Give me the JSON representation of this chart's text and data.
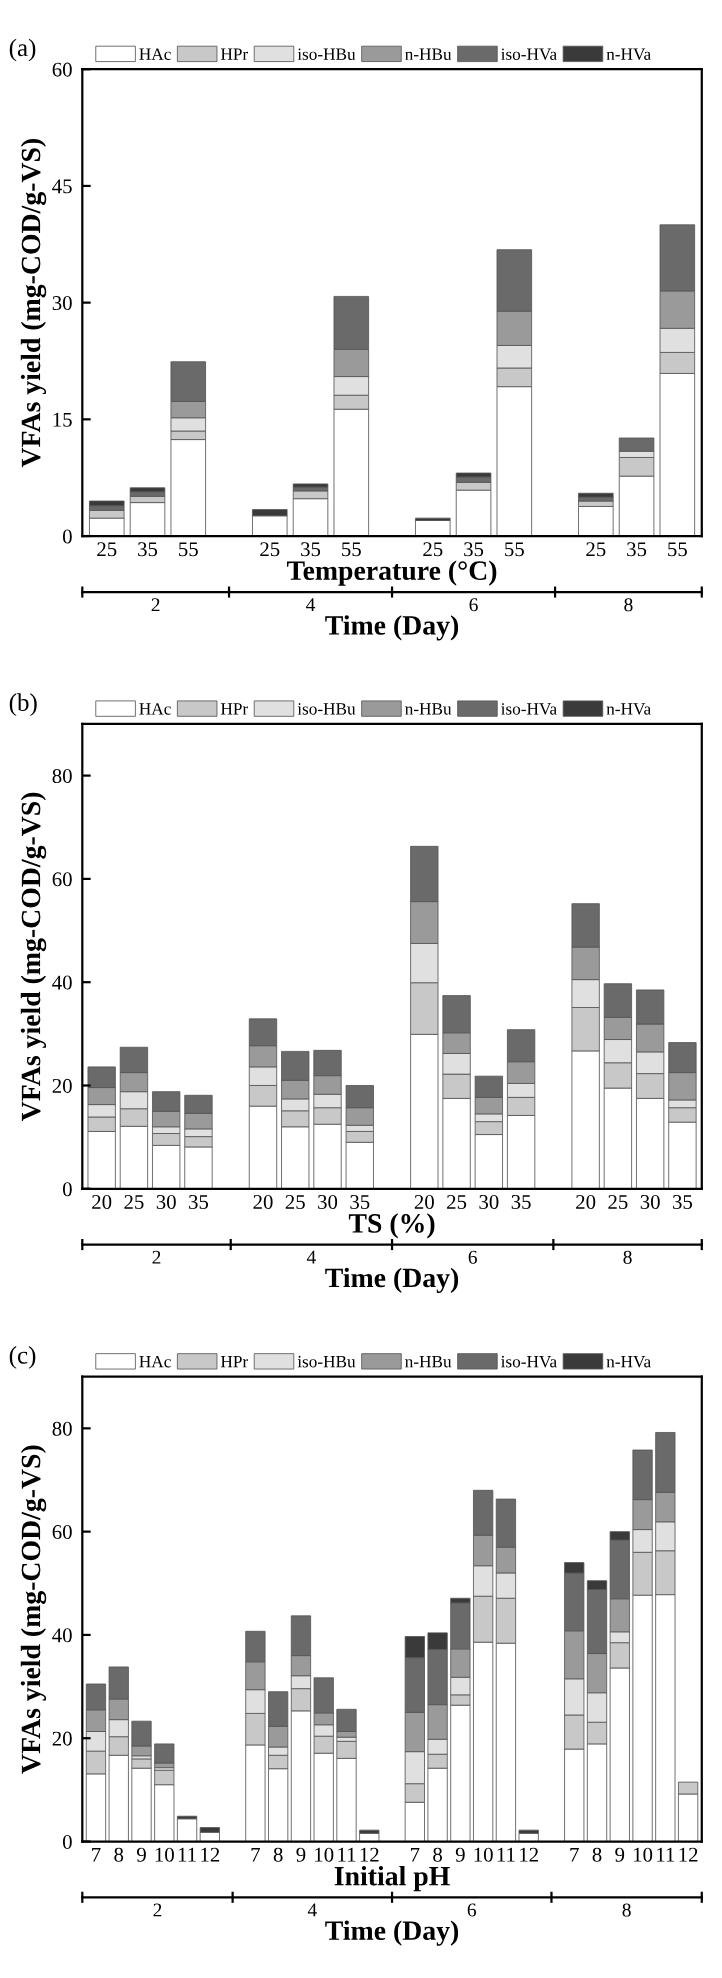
{
  "chart_data": [
    {
      "type": "bar",
      "stacked": true,
      "title": "(a)",
      "xlabel": "Temperature (°C)",
      "ylabel": "VFAs yield (mg-COD/g-VS)",
      "legend": "top",
      "ylim": [
        0,
        60
      ],
      "yticks": [
        0,
        15,
        30,
        45,
        60
      ],
      "categories": [
        "25",
        "35",
        "55",
        null,
        "25",
        "35",
        "55",
        null,
        "25",
        "35",
        "55",
        null,
        "25",
        "35",
        "55"
      ],
      "annotations": [
        "2",
        "4",
        "6",
        "8",
        "Time (Day)"
      ],
      "series": [
        {
          "name": "HAc",
          "color": "#ffffff",
          "values": [
            2.3,
            4.3,
            12.4,
            null,
            2.6,
            4.8,
            16.3,
            null,
            2.0,
            5.9,
            19.2,
            null,
            3.8,
            7.7,
            20.9
          ]
        },
        {
          "name": "HPr",
          "color": "#c8c8c8",
          "values": [
            1.0,
            0.8,
            1.1,
            null,
            0,
            1.0,
            1.8,
            null,
            0,
            1.0,
            2.4,
            null,
            0.7,
            2.4,
            2.7
          ]
        },
        {
          "name": "iso-HBu",
          "color": "#e0e0e0",
          "values": [
            0,
            0,
            1.7,
            null,
            0,
            0,
            2.4,
            null,
            0,
            0,
            2.9,
            null,
            0,
            0.8,
            3.1
          ]
        },
        {
          "name": "n-HBu",
          "color": "#9a9a9a",
          "values": [
            0,
            0,
            2.1,
            null,
            0,
            0,
            3.5,
            null,
            0,
            0,
            4.4,
            null,
            0,
            0,
            4.8
          ]
        },
        {
          "name": "iso-HVa",
          "color": "#6a6a6a",
          "values": [
            0.6,
            0.6,
            5.1,
            null,
            0,
            0.5,
            6.8,
            null,
            0,
            0.7,
            7.9,
            null,
            0.5,
            1.7,
            8.5
          ]
        },
        {
          "name": "n-HVa",
          "color": "#3a3a3a",
          "values": [
            0.6,
            0.5,
            0,
            null,
            0.8,
            0.4,
            0,
            null,
            0.3,
            0.5,
            0,
            null,
            0.5,
            0,
            0
          ]
        }
      ]
    },
    {
      "type": "bar",
      "stacked": true,
      "title": "(b)",
      "xlabel": "TS (%)",
      "ylabel": "VFAs yield (mg-COD/g-VS)",
      "legend": "top",
      "ylim": [
        0,
        90
      ],
      "yticks": [
        0,
        20,
        40,
        60,
        80
      ],
      "categories": [
        "20",
        "25",
        "30",
        "35",
        null,
        "20",
        "25",
        "30",
        "35",
        null,
        "20",
        "25",
        "30",
        "35",
        null,
        "20",
        "25",
        "30",
        "35"
      ],
      "annotations": [
        "2",
        "4",
        "6",
        "8",
        "Time (Day)"
      ],
      "series": [
        {
          "name": "HAc",
          "color": "#ffffff",
          "values": [
            11.1,
            12.1,
            8.4,
            8.1,
            null,
            16.0,
            12.0,
            12.5,
            9.0,
            null,
            29.9,
            17.5,
            10.5,
            14.2,
            null,
            26.7,
            19.5,
            17.5,
            12.9
          ]
        },
        {
          "name": "HPr",
          "color": "#c8c8c8",
          "values": [
            2.8,
            3.4,
            2.3,
            2.0,
            null,
            4.0,
            3.1,
            3.2,
            2.1,
            null,
            10.0,
            4.7,
            2.5,
            3.5,
            null,
            8.4,
            4.9,
            4.8,
            2.8
          ]
        },
        {
          "name": "iso-HBu",
          "color": "#e0e0e0",
          "values": [
            2.4,
            3.3,
            1.3,
            1.5,
            null,
            3.6,
            2.3,
            2.6,
            1.2,
            null,
            7.6,
            4.0,
            1.5,
            2.7,
            null,
            5.4,
            4.5,
            4.2,
            1.5
          ]
        },
        {
          "name": "n-HBu",
          "color": "#9a9a9a",
          "values": [
            3.3,
            3.7,
            3.0,
            3.0,
            null,
            4.1,
            3.6,
            3.6,
            3.4,
            null,
            8.1,
            4.0,
            3.2,
            4.2,
            null,
            6.3,
            4.3,
            5.4,
            5.3
          ]
        },
        {
          "name": "iso-HVa",
          "color": "#6a6a6a",
          "values": [
            4.0,
            4.9,
            3.8,
            3.5,
            null,
            5.2,
            5.6,
            4.9,
            4.3,
            null,
            10.7,
            7.2,
            4.1,
            6.2,
            null,
            8.4,
            6.5,
            6.6,
            5.8
          ]
        },
        {
          "name": "n-HVa",
          "color": "#3a3a3a",
          "values": [
            0,
            0,
            0,
            0,
            null,
            0,
            0,
            0,
            0,
            null,
            0,
            0,
            0,
            0,
            null,
            0,
            0,
            0,
            0
          ]
        }
      ]
    },
    {
      "type": "bar",
      "stacked": true,
      "title": "(c)",
      "xlabel": "Initial pH",
      "ylabel": "VFAs yield (mg-COD/g-VS)",
      "legend": "top",
      "ylim": [
        0,
        90
      ],
      "yticks": [
        0,
        20,
        40,
        60,
        80
      ],
      "categories": [
        "7",
        "8",
        "9",
        "10",
        "11",
        "12",
        null,
        "7",
        "8",
        "9",
        "10",
        "11",
        "12",
        null,
        "7",
        "8",
        "9",
        "10",
        "11",
        "12",
        null,
        "7",
        "8",
        "9",
        "10",
        "11",
        "12"
      ],
      "annotations": [
        "2",
        "4",
        "6",
        "8",
        "Time (Day)"
      ],
      "series": [
        {
          "name": "HAc",
          "color": "#ffffff",
          "values": [
            13.1,
            16.7,
            14.2,
            11.0,
            4.4,
            1.8,
            null,
            18.7,
            14.1,
            25.3,
            17.1,
            16.1,
            1.6,
            null,
            7.6,
            14.2,
            26.4,
            38.6,
            38.4,
            1.6,
            null,
            17.9,
            18.9,
            33.6,
            47.7,
            47.8,
            9.2
          ]
        },
        {
          "name": "HPr",
          "color": "#c8c8c8",
          "values": [
            4.4,
            3.6,
            1.8,
            2.8,
            0,
            0,
            null,
            6.1,
            2.6,
            4.3,
            3.3,
            3.3,
            0,
            null,
            3.6,
            2.7,
            2.0,
            8.9,
            8.7,
            0,
            null,
            6.6,
            4.2,
            4.9,
            8.3,
            8.5,
            2.3
          ]
        },
        {
          "name": "iso-HBu",
          "color": "#e0e0e0",
          "values": [
            3.8,
            3.3,
            0.6,
            0.5,
            0,
            0,
            null,
            4.6,
            1.6,
            2.5,
            2.2,
            0.8,
            0,
            null,
            6.2,
            2.9,
            3.4,
            5.9,
            4.9,
            0,
            null,
            7.0,
            5.7,
            2.1,
            4.4,
            5.6,
            0
          ]
        },
        {
          "name": "n-HBu",
          "color": "#9a9a9a",
          "values": [
            4.2,
            4.0,
            1.9,
            0.9,
            0,
            0,
            null,
            5.4,
            4.0,
            3.9,
            2.3,
            1.1,
            0,
            null,
            7.6,
            6.7,
            5.5,
            5.9,
            5.0,
            0,
            null,
            9.3,
            7.6,
            6.4,
            5.8,
            5.7,
            0
          ]
        },
        {
          "name": "iso-HVa",
          "color": "#6a6a6a",
          "values": [
            5.0,
            6.2,
            4.8,
            3.7,
            0,
            0,
            null,
            5.9,
            6.7,
            7.7,
            6.8,
            4.3,
            0,
            null,
            10.6,
            10.7,
            8.9,
            8.7,
            9.3,
            0,
            null,
            11.2,
            12.4,
            11.4,
            9.6,
            11.6,
            0
          ]
        },
        {
          "name": "n-HVa",
          "color": "#3a3a3a",
          "values": [
            0,
            0,
            0,
            0,
            0.5,
            0.9,
            null,
            0,
            0,
            0,
            0,
            0,
            0.6,
            null,
            4.1,
            3.2,
            0.9,
            0,
            0,
            0.6,
            null,
            2.0,
            1.7,
            1.6,
            0,
            0,
            0
          ]
        }
      ]
    }
  ]
}
